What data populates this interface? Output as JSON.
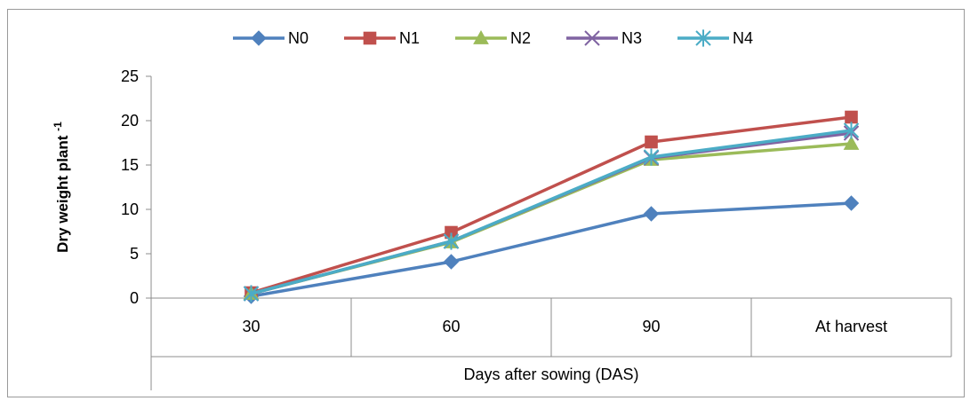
{
  "chart_data": {
    "type": "line",
    "xlabel": "Days after sowing (DAS)",
    "ylabel": "Dry weight plant",
    "ylabel_superscript": "-1",
    "categories": [
      "30",
      "60",
      "90",
      "At harvest"
    ],
    "ylim": [
      0,
      25
    ],
    "yticks": [
      "0",
      "5",
      "10",
      "15",
      "20",
      "25"
    ],
    "legend_position": "top",
    "grid": false,
    "series": [
      {
        "name": "N0",
        "values": [
          0.2,
          4.1,
          9.5,
          10.7
        ],
        "color": "#4f81bd",
        "marker": "diamond"
      },
      {
        "name": "N1",
        "values": [
          0.6,
          7.4,
          17.6,
          20.4
        ],
        "color": "#c0504d",
        "marker": "square"
      },
      {
        "name": "N2",
        "values": [
          0.5,
          6.3,
          15.6,
          17.4
        ],
        "color": "#9bbb59",
        "marker": "triangle"
      },
      {
        "name": "N3",
        "values": [
          0.5,
          6.4,
          15.8,
          18.6
        ],
        "color": "#8064a2",
        "marker": "x"
      },
      {
        "name": "N4",
        "values": [
          0.5,
          6.4,
          15.9,
          18.9
        ],
        "color": "#4bacc6",
        "marker": "star"
      }
    ]
  }
}
